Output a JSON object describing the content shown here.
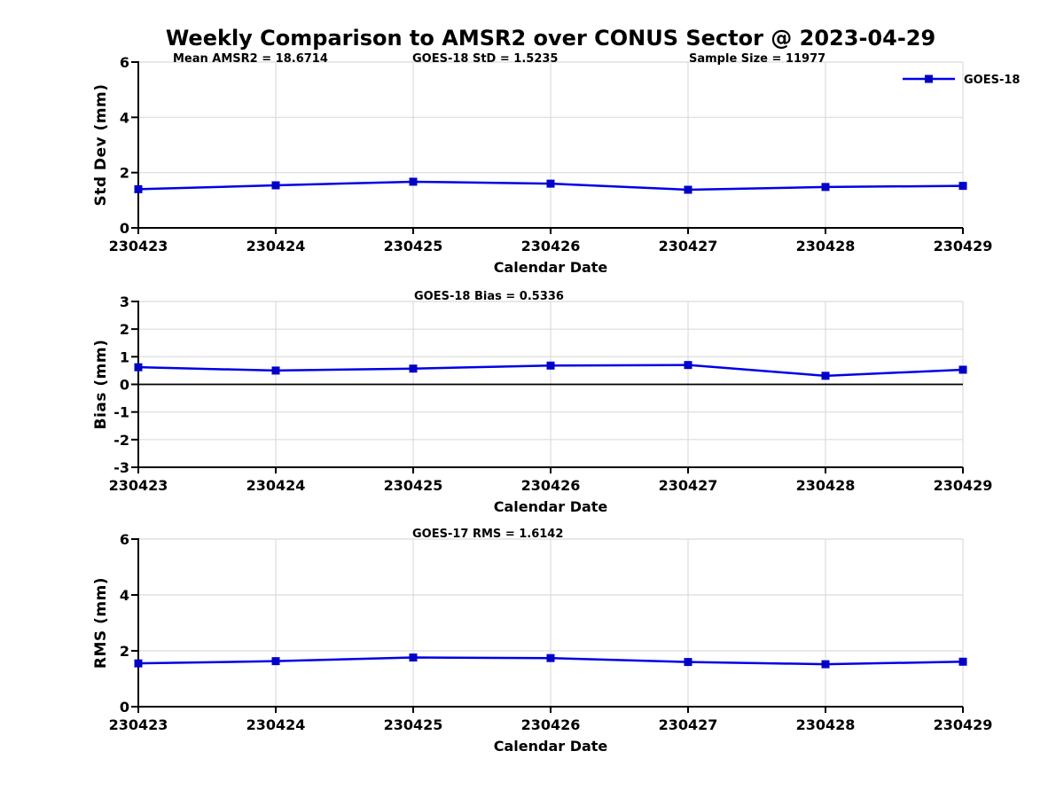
{
  "title": "Weekly Comparison to AMSR2 over CONUS Sector @ 2023-04-29",
  "legend": {
    "label": "GOES-18"
  },
  "colors": {
    "line": "#0000E8",
    "marker": "#0000C8",
    "grid": "#DBDBDB",
    "axis": "#000000",
    "zero_line": "#000000",
    "text": "#000000"
  },
  "chart_data": [
    {
      "type": "line",
      "name": "stddev-plot",
      "annotations": [
        "Mean AMSR2 = 18.6714",
        "GOES-18 StD = 1.5235",
        "Sample Size = 11977"
      ],
      "x": [
        "230423",
        "230424",
        "230425",
        "230426",
        "230427",
        "230428",
        "230429"
      ],
      "series": [
        {
          "name": "GOES-18",
          "values": [
            1.4,
            1.54,
            1.67,
            1.6,
            1.38,
            1.48,
            1.52
          ]
        }
      ],
      "xlabel": "Calendar Date",
      "ylabel": "Std Dev (mm)",
      "ylim": [
        0,
        6
      ],
      "yticks": [
        0,
        2,
        4,
        6
      ],
      "grid": true,
      "zero_line": false,
      "legend_position": "northeast-outside"
    },
    {
      "type": "line",
      "name": "bias-plot",
      "annotations": [
        "GOES-18 Bias  = 0.5336"
      ],
      "x": [
        "230423",
        "230424",
        "230425",
        "230426",
        "230427",
        "230428",
        "230429"
      ],
      "series": [
        {
          "name": "GOES-18",
          "values": [
            0.62,
            0.5,
            0.57,
            0.68,
            0.7,
            0.31,
            0.53
          ]
        }
      ],
      "xlabel": "Calendar Date",
      "ylabel": "Bias (mm)",
      "ylim": [
        -3,
        3
      ],
      "yticks": [
        -3,
        -2,
        -1,
        0,
        1,
        2,
        3
      ],
      "grid": true,
      "zero_line": true,
      "legend_position": "none"
    },
    {
      "type": "line",
      "name": "rms-plot",
      "annotations": [
        "GOES-17 RMS = 1.6142"
      ],
      "x": [
        "230423",
        "230424",
        "230425",
        "230426",
        "230427",
        "230428",
        "230429"
      ],
      "series": [
        {
          "name": "GOES-18",
          "values": [
            1.55,
            1.63,
            1.76,
            1.74,
            1.6,
            1.52,
            1.61
          ]
        }
      ],
      "xlabel": "Calendar Date",
      "ylabel": "RMS (mm)",
      "ylim": [
        0,
        6
      ],
      "yticks": [
        0,
        2,
        4,
        6
      ],
      "grid": true,
      "zero_line": false,
      "legend_position": "none"
    }
  ]
}
